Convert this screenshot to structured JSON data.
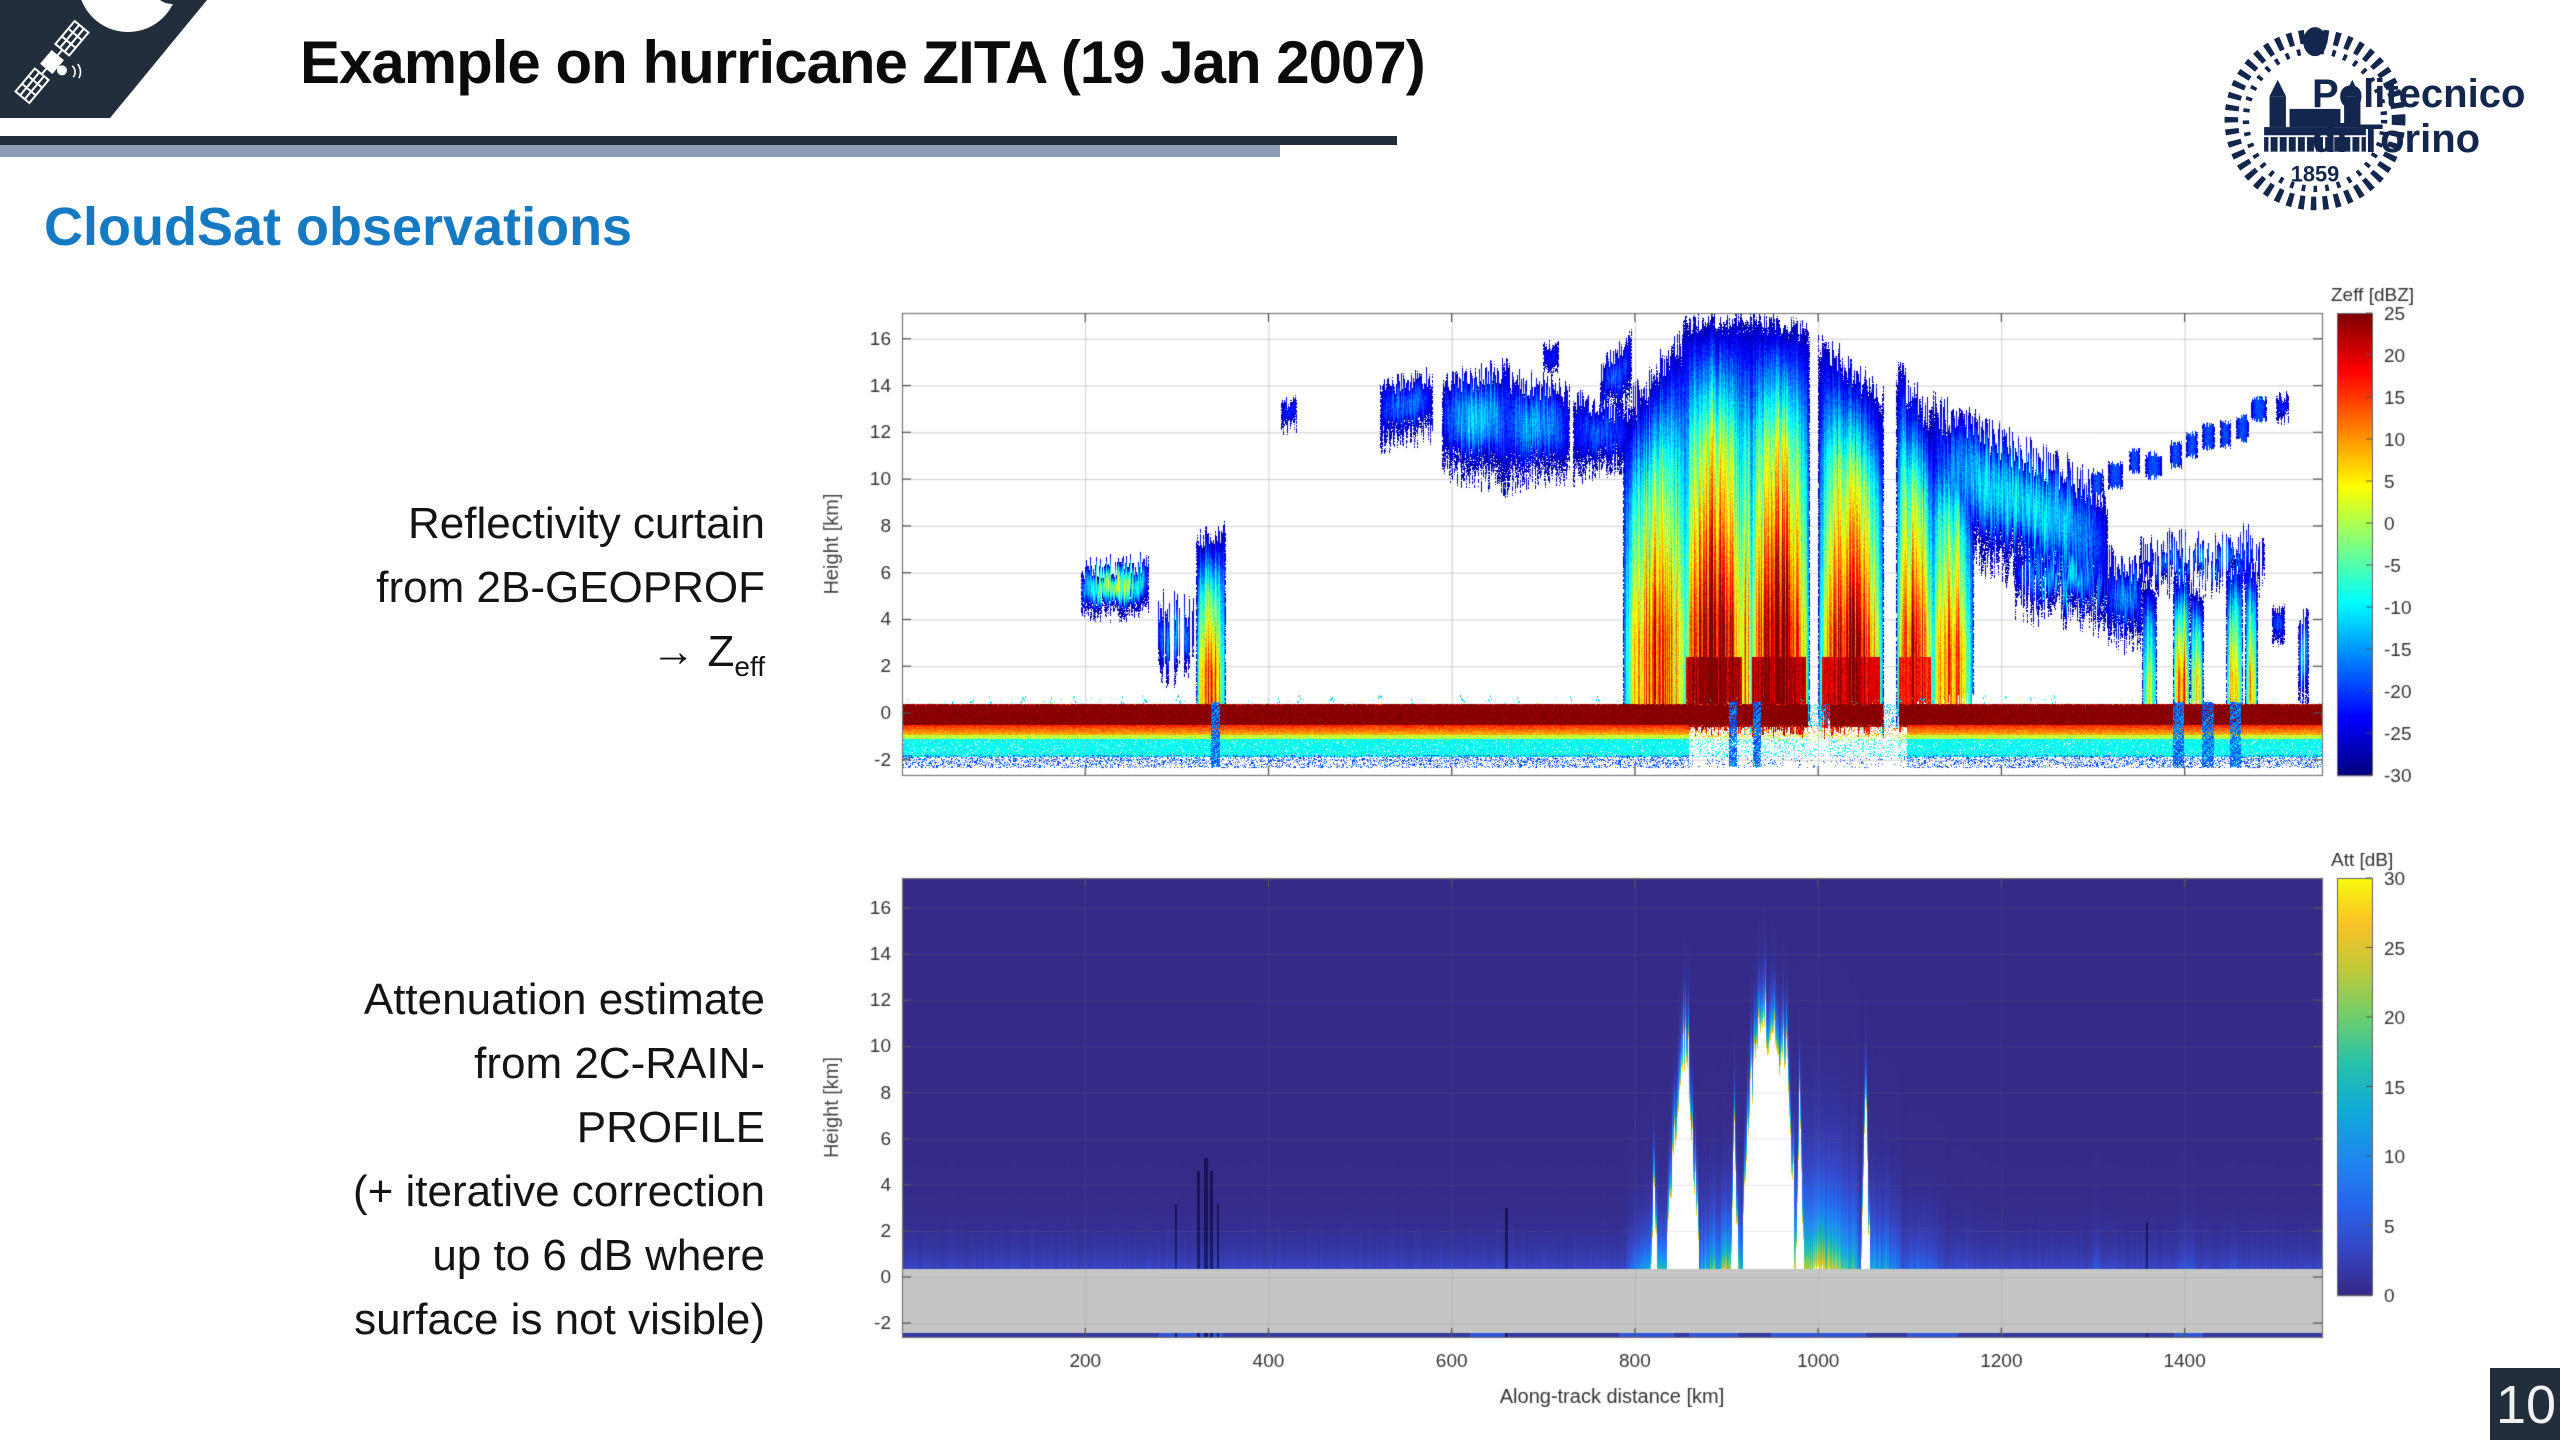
{
  "slide": {
    "title": "Example on hurricane ZITA (19 Jan 2007)",
    "section_heading": "CloudSat observations",
    "page_number": "10",
    "colors": {
      "navy": "#232e3c",
      "underline_blue_gray": "#8d9cb4",
      "heading_blue": "#167ac2",
      "logo_navy": "#13264d"
    }
  },
  "logo": {
    "institution_line1": "Politecnico",
    "institution_line2": "di Torino",
    "year": "1859"
  },
  "annotations": {
    "block1_lines": [
      "Reflectivity curtain",
      "from 2B-GEOPROF"
    ],
    "block1_arrow": {
      "arrow": "→",
      "zsym": " Z",
      "sub": "eff"
    },
    "block2_lines": [
      "Attenuation estimate",
      "from 2C-RAIN-",
      "PROFILE",
      "(+ iterative correction",
      "up to 6 dB where",
      "surface is not visible)"
    ]
  },
  "chart_data": [
    {
      "id": "zeff",
      "type": "heatmap",
      "description": "CloudSat 2B-GEOPROF radar reflectivity curtain through hurricane ZITA",
      "colormap": "jet",
      "ylabel": "Height [km]",
      "xlabel": "",
      "x_range": [
        0,
        1550
      ],
      "y_range": [
        -2.65,
        17.1
      ],
      "x_ticks": [
        200,
        400,
        600,
        800,
        1000,
        1200,
        1400
      ],
      "x_tick_labels_shown": false,
      "y_ticks": [
        16,
        14,
        12,
        10,
        8,
        6,
        4,
        2,
        0,
        -2
      ],
      "grid": true,
      "colorbar": {
        "title": "Zeff [dBZ]",
        "min": -30,
        "max": 25,
        "ticks": [
          25,
          20,
          15,
          10,
          5,
          0,
          -5,
          -10,
          -15,
          -20,
          -25,
          -30
        ]
      },
      "clouds": [
        {
          "t": "ice",
          "x": [
            196,
            268
          ],
          "b": [
            4.2,
            4.4
          ],
          "tp": [
            6.2,
            6.4
          ],
          "peak": -1,
          "jt": 0.5,
          "jb": 0.4
        },
        {
          "t": "ice",
          "x": [
            278,
            318
          ],
          "b": [
            1.6,
            2.0
          ],
          "tp": [
            4.6,
            4.2
          ],
          "peak": -15,
          "jt": 0.8,
          "jb": 0.8,
          "sparse": 0.45
        },
        {
          "t": "cell",
          "x": [
            322,
            352
          ],
          "b": [
            -0.2,
            -0.2
          ],
          "tp": [
            7.4,
            7.8
          ],
          "peak": 13,
          "jt": 0.5
        },
        {
          "t": "ice",
          "x": [
            414,
            430
          ],
          "b": [
            12.2,
            12.3
          ],
          "tp": [
            13.2,
            13.4
          ],
          "peak": -21,
          "jt": 0.3
        },
        {
          "t": "ice",
          "x": [
            522,
            578
          ],
          "b": [
            11.6,
            12.0
          ],
          "tp": [
            14.0,
            14.4
          ],
          "peak": -17,
          "jt": 0.5
        },
        {
          "t": "ice",
          "x": [
            590,
            662
          ],
          "b": [
            10.5,
            9.8
          ],
          "tp": [
            14.2,
            14.6
          ],
          "peak": -12,
          "jt": 0.6
        },
        {
          "t": "ice",
          "x": [
            655,
            728
          ],
          "b": [
            9.8,
            10.4
          ],
          "tp": [
            14.4,
            13.6
          ],
          "peak": -14,
          "jt": 0.6
        },
        {
          "t": "ice",
          "x": [
            733,
            792
          ],
          "b": [
            10.2,
            10.8
          ],
          "tp": [
            13.4,
            12.8
          ],
          "peak": -19,
          "jt": 0.5
        },
        {
          "t": "ice",
          "x": [
            700,
            716
          ],
          "b": [
            14.6,
            14.7
          ],
          "tp": [
            15.7,
            15.8
          ],
          "peak": -22,
          "jt": 0.2
        },
        {
          "t": "ice",
          "x": [
            762,
            795
          ],
          "b": [
            12.8,
            13.4
          ],
          "tp": [
            14.6,
            15.8
          ],
          "peak": -18,
          "jt": 0.6
        },
        {
          "t": "deep",
          "x": [
            788,
            858
          ],
          "b": [
            -0.3,
            -0.3
          ],
          "tp": [
            12.8,
            16.4
          ],
          "peak": 14,
          "jt": 0.8
        },
        {
          "t": "deep",
          "x": [
            852,
            920
          ],
          "b": [
            -0.6,
            -0.6
          ],
          "tp": [
            16.6,
            16.9
          ],
          "peak": 25,
          "jt": 0.4
        },
        {
          "t": "deep",
          "x": [
            915,
            926
          ],
          "b": [
            -0.3,
            -0.3
          ],
          "tp": [
            16.4,
            16.6
          ],
          "peak": 10,
          "jt": 0.3
        },
        {
          "t": "deep",
          "x": [
            924,
            990
          ],
          "b": [
            -0.6,
            -0.6
          ],
          "tp": [
            16.9,
            16.4
          ],
          "peak": 25,
          "jt": 0.4
        },
        {
          "t": "deep",
          "x": [
            1000,
            1070
          ],
          "b": [
            -0.4,
            -0.4
          ],
          "tp": [
            15.8,
            13.6
          ],
          "peak": 21,
          "jt": 0.7
        },
        {
          "t": "deep",
          "x": [
            1086,
            1125
          ],
          "b": [
            -0.2,
            -0.2
          ],
          "tp": [
            14.6,
            12.4
          ],
          "peak": 18,
          "jt": 0.8
        },
        {
          "t": "deep",
          "x": [
            1122,
            1168
          ],
          "b": [
            0.0,
            0.2
          ],
          "tp": [
            12.6,
            10.6
          ],
          "peak": 12,
          "jt": 0.8
        },
        {
          "t": "ice",
          "x": [
            1125,
            1315
          ],
          "b": [
            7.6,
            4.4
          ],
          "tp": [
            13.0,
            9.4
          ],
          "peak": -10,
          "jt": 0.9,
          "jb": 1.0
        },
        {
          "t": "ice",
          "x": [
            1215,
            1322
          ],
          "b": [
            4.4,
            4.0
          ],
          "tp": [
            7.2,
            6.4
          ],
          "peak": -13,
          "jt": 0.8,
          "sparse": 0.25
        },
        {
          "t": "ice",
          "x": [
            1316,
            1352
          ],
          "b": [
            3.4,
            3.0
          ],
          "tp": [
            6.0,
            6.2
          ],
          "peak": -15,
          "jt": 0.7
        },
        {
          "t": "cell",
          "x": [
            1354,
            1368
          ],
          "b": [
            0.1,
            0.1
          ],
          "tp": [
            5.2,
            5.4
          ],
          "peak": 0,
          "jt": 0.5
        },
        {
          "t": "cell",
          "x": [
            1388,
            1404
          ],
          "b": [
            0.1,
            0.1
          ],
          "tp": [
            5.8,
            6.0
          ],
          "peak": 14,
          "jt": 0.5
        },
        {
          "t": "cell",
          "x": [
            1406,
            1420
          ],
          "b": [
            0.2,
            0.2
          ],
          "tp": [
            5.4,
            5.2
          ],
          "peak": 4,
          "jt": 0.5
        },
        {
          "t": "cell",
          "x": [
            1446,
            1462
          ],
          "b": [
            0.1,
            0.1
          ],
          "tp": [
            6.2,
            6.4
          ],
          "peak": 11,
          "jt": 0.6
        },
        {
          "t": "cell",
          "x": [
            1466,
            1478
          ],
          "b": [
            0.2,
            0.2
          ],
          "tp": [
            6.4,
            6.0
          ],
          "peak": 6,
          "jt": 0.5
        },
        {
          "t": "ice",
          "x": [
            1352,
            1486
          ],
          "b": [
            5.6,
            5.8
          ],
          "tp": [
            7.0,
            7.4
          ],
          "peak": -16,
          "jt": 0.8,
          "sparse": 0.3
        },
        {
          "t": "ice",
          "x": [
            1496,
            1508
          ],
          "b": [
            3.0,
            3.1
          ],
          "tp": [
            4.6,
            4.5
          ],
          "peak": -18,
          "jt": 0.3
        },
        {
          "t": "ice",
          "x": [
            1500,
            1512
          ],
          "b": [
            12.6,
            12.7
          ],
          "tp": [
            13.4,
            13.5
          ],
          "peak": -21,
          "jt": 0.3
        },
        {
          "t": "ice",
          "x": [
            1524,
            1534
          ],
          "b": [
            0.3,
            0.3
          ],
          "tp": [
            4.0,
            4.2
          ],
          "peak": -14,
          "jt": 0.4,
          "sparse": 0.3
        }
      ],
      "fragments": [
        {
          "x": [
            1298,
            1492
          ],
          "y": [
            9.8,
            13.2
          ],
          "thick": 0.9,
          "peak": -19,
          "seg": 13,
          "gap": 8
        }
      ],
      "surface": {
        "main_band": {
          "y": [
            -0.55,
            0.35
          ],
          "dbz": 24.5
        },
        "bands": [
          {
            "y": [
              -0.95,
              -0.55
            ],
            "dbz_top": 16,
            "dbz_bot": 7
          },
          {
            "y": [
              -1.15,
              -0.95
            ],
            "dbz": 1
          },
          {
            "y": [
              -1.8,
              -1.15
            ],
            "dbz": -9,
            "presence": 0.95
          },
          {
            "y": [
              -2.3,
              -1.8
            ],
            "dbz": -19,
            "presence": 0.3
          }
        ],
        "gaps": [
          [
            988,
            1012
          ],
          [
            1070,
            1088
          ]
        ],
        "subsurface_disruption": {
          "x": [
            858,
            1096
          ],
          "presence": 0.25
        },
        "punch_columns": [
          [
            338,
            346
          ],
          [
            903,
            910
          ],
          [
            929,
            936
          ],
          [
            1388,
            1398
          ],
          [
            1420,
            1430
          ],
          [
            1450,
            1460
          ]
        ],
        "clutter_km": [
          55,
          75,
          95,
          130,
          162,
          187,
          240,
          262,
          300,
          410,
          432,
          468,
          520,
          556,
          610,
          640,
          672,
          730,
          758,
          1090,
          1112,
          1180,
          1205,
          1232,
          1255
        ]
      }
    },
    {
      "id": "att",
      "type": "heatmap",
      "description": "2C-RAIN-PROFILE two-way attenuation estimate",
      "colormap": "parula",
      "ylabel": "Height [km]",
      "xlabel": "Along-track distance [km]",
      "x_range": [
        0,
        1550
      ],
      "y_range": [
        -2.6,
        17.3
      ],
      "x_ticks": [
        200,
        400,
        600,
        800,
        1000,
        1200,
        1400
      ],
      "x_tick_labels_shown": true,
      "y_ticks": [
        16,
        14,
        12,
        10,
        8,
        6,
        4,
        2,
        0,
        -2
      ],
      "grid": true,
      "colorbar": {
        "title": "Att [dB]",
        "min": 0,
        "max": 30,
        "ticks": [
          30,
          25,
          20,
          15,
          10,
          5,
          0
        ]
      },
      "background": {
        "A0": 3.2,
        "H": 1.15
      },
      "surface_gray": {
        "top_km": 0.38,
        "color": "#c5c5c5"
      },
      "white_columns": [
        {
          "x": [
            818,
            823
          ],
          "pts": [
            [
              818,
              0.8
            ],
            [
              820.5,
              4.3
            ],
            [
              823,
              0.8
            ]
          ],
          "jit": 0.3
        },
        {
          "x": [
            836,
            868
          ],
          "pts": [
            [
              836,
              2.2
            ],
            [
              845,
              6.5
            ],
            [
              852,
              9.6
            ],
            [
              858,
              8.8
            ],
            [
              864,
              4.0
            ],
            [
              868,
              2.0
            ]
          ],
          "jit": 0.5
        },
        {
          "x": [
            905,
            911
          ],
          "pts": [
            [
              905,
              1.0
            ],
            [
              908,
              7.4
            ],
            [
              911,
              1.0
            ]
          ],
          "jit": 0.3
        },
        {
          "x": [
            918,
            972
          ],
          "pts": [
            [
              918,
              3.0
            ],
            [
              926,
              7.5
            ],
            [
              938,
              11.4
            ],
            [
              946,
              9.8
            ],
            [
              952,
              10.9
            ],
            [
              958,
              8.5
            ],
            [
              965,
              9.9
            ],
            [
              972,
              3.5
            ]
          ],
          "jit": 0.6
        },
        {
          "x": [
            976,
            983
          ],
          "pts": [
            [
              976,
              1.5
            ],
            [
              979.5,
              7.6
            ],
            [
              983,
              1.5
            ]
          ],
          "jit": 0.3
        },
        {
          "x": [
            1047,
            1055
          ],
          "pts": [
            [
              1047,
              1.0
            ],
            [
              1051,
              8.1
            ],
            [
              1055,
              1.0
            ]
          ],
          "jit": 0.3
        }
      ],
      "ramp_columns": [
        {
          "x": [
            788,
            838
          ],
          "A": [
            5,
            22
          ],
          "H": 1.3
        },
        {
          "x": [
            864,
            920
          ],
          "A": [
            12,
            26
          ],
          "H": 1.6,
          "stripes": 0.6
        },
        {
          "x": [
            968,
            1044
          ],
          "A": [
            29,
            22
          ],
          "H": 2.3,
          "stripes": 0.35
        },
        {
          "x": [
            1044,
            1092
          ],
          "A": [
            16,
            10
          ],
          "H": 1.8,
          "stripes": 0.5
        },
        {
          "x": [
            1092,
            1140
          ],
          "A": [
            8,
            5
          ],
          "H": 1.5
        },
        {
          "x": [
            1140,
            1188
          ],
          "A": [
            4.5,
            3
          ],
          "H": 1.3
        },
        {
          "x": [
            296,
            302
          ],
          "A": [
            5,
            5
          ],
          "H": 1.1
        },
        {
          "x": [
            394,
            398
          ],
          "A": [
            3,
            3
          ],
          "H": 1.0
        },
        {
          "x": [
            518,
            524
          ],
          "A": [
            3.5,
            3.5
          ],
          "H": 1.0
        },
        {
          "x": [
            597,
            603
          ],
          "A": [
            3,
            3
          ],
          "H": 1.0
        },
        {
          "x": [
            656,
            663
          ],
          "A": [
            4,
            4
          ],
          "H": 1.1
        },
        {
          "x": [
            1205,
            1213
          ],
          "A": [
            3,
            3
          ],
          "H": 1.0
        },
        {
          "x": [
            1298,
            1309
          ],
          "A": [
            4.5,
            4.5
          ],
          "H": 1.2,
          "stripes": 0.5
        },
        {
          "x": [
            1318,
            1327
          ],
          "A": [
            4,
            4
          ],
          "H": 1.1
        },
        {
          "x": [
            1356,
            1363
          ],
          "A": [
            3.5,
            3.5
          ],
          "H": 1.0
        },
        {
          "x": [
            1392,
            1413
          ],
          "A": [
            5,
            5
          ],
          "H": 1.2,
          "stripes": 0.6
        },
        {
          "x": [
            1448,
            1463
          ],
          "A": [
            4.5,
            4.5
          ],
          "H": 1.1,
          "stripes": 0.5
        },
        {
          "x": [
            1505,
            1513
          ],
          "A": [
            3.5,
            3.5
          ],
          "H": 1.0
        }
      ],
      "shadow_columns": [
        [
          297,
          300,
          3.2
        ],
        [
          322,
          325,
          4.6
        ],
        [
          329,
          333,
          5.2
        ],
        [
          336,
          339,
          4.6
        ],
        [
          343,
          346,
          3.2
        ],
        [
          658,
          661,
          3.0
        ],
        [
          1357,
          1359,
          2.4
        ]
      ],
      "bottom_strip": {
        "y_top": -2.42,
        "bright_segments": [
          [
            280,
            350
          ],
          [
            620,
            662
          ],
          [
            782,
            842
          ],
          [
            858,
            912
          ],
          [
            948,
            1052
          ],
          [
            1096,
            1152
          ],
          [
            1388,
            1420
          ]
        ]
      }
    }
  ]
}
